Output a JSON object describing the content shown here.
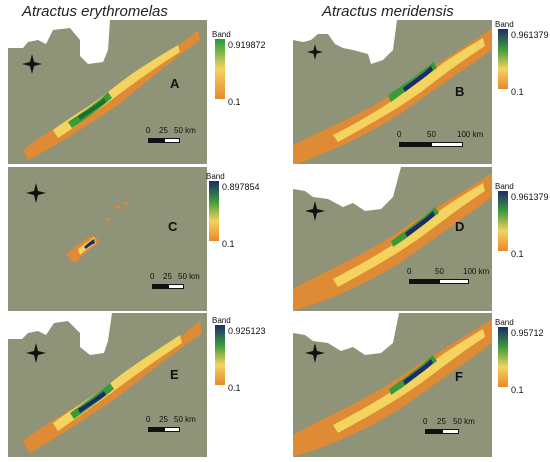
{
  "titles": {
    "left": "Atractus erythromelas",
    "right": "Atractus meridensis"
  },
  "colors": {
    "background": "#8f9378",
    "land": "#ffffff",
    "low": "#e8892c",
    "mid": "#f4d35e",
    "high": "#3a9a3a",
    "max": "#1f2a6b"
  },
  "panels": [
    {
      "id": "A",
      "letter": "A",
      "legend_label": "Band",
      "max": "0.919872",
      "min": "0.1",
      "max_color": "#1e9e3a",
      "scale": [
        "0",
        "25",
        "50 km"
      ],
      "compass_icon": "north-star-icon"
    },
    {
      "id": "B",
      "letter": "B",
      "legend_label": "Band",
      "max": "0.961379",
      "min": "0.1",
      "max_color": "#1f2a6b",
      "scale": [
        "0",
        "50",
        "100 km"
      ],
      "compass_icon": "north-star-icon"
    },
    {
      "id": "C",
      "letter": "C",
      "legend_label": "Band",
      "max": "0.897854",
      "min": "0.1",
      "max_color": "#1f2a6b",
      "scale": [
        "0",
        "25",
        "50 km"
      ],
      "compass_icon": "north-star-icon"
    },
    {
      "id": "D",
      "letter": "D",
      "legend_label": "Band",
      "max": "0.961379",
      "min": "0.1",
      "max_color": "#1f2a6b",
      "scale": [
        "0",
        "50",
        "100 km"
      ],
      "compass_icon": "north-star-icon"
    },
    {
      "id": "E",
      "letter": "E",
      "legend_label": "Band",
      "max": "0.925123",
      "min": "0.1",
      "max_color": "#1f2a6b",
      "scale": [
        "0",
        "25",
        "50 km"
      ],
      "compass_icon": "north-star-icon"
    },
    {
      "id": "F",
      "letter": "F",
      "legend_label": "Band",
      "max": "0.95712",
      "min": "0.1",
      "max_color": "#1f2a6b",
      "scale": [
        "0",
        "25",
        "50 km"
      ],
      "compass_icon": "north-star-icon"
    }
  ]
}
